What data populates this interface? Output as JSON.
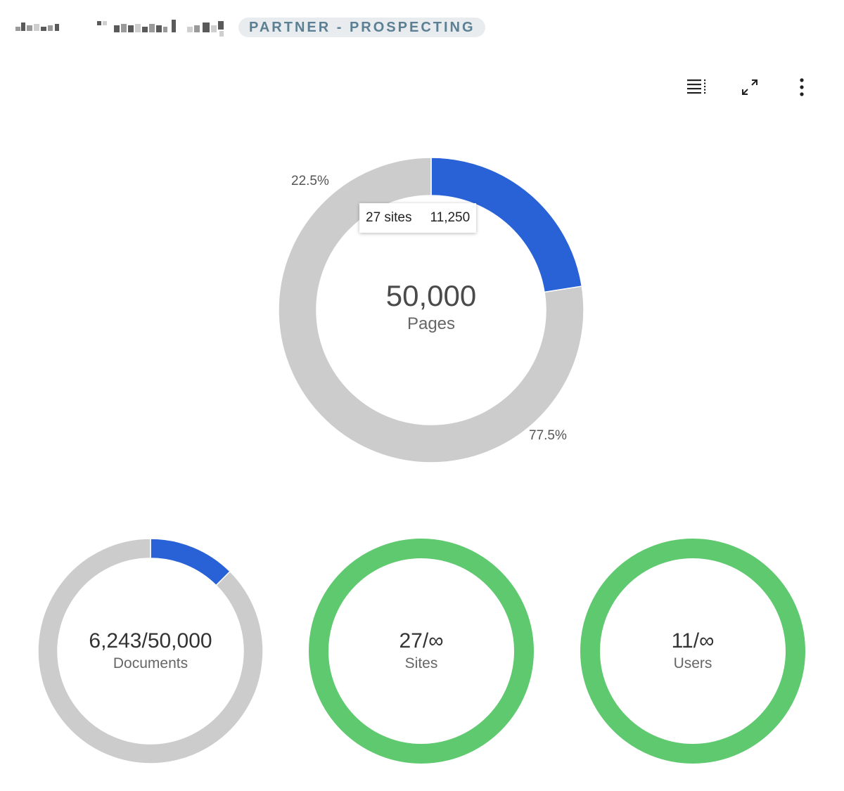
{
  "header": {
    "org_name": "Mike Paulson's",
    "plan_badge": "PARTNER - PROSPECTING"
  },
  "toolbar": {
    "buttons": [
      {
        "icon": "legend-list-icon"
      },
      {
        "icon": "expand-icon"
      },
      {
        "icon": "more-vertical-icon"
      }
    ]
  },
  "main_chart": {
    "center_value": "50,000",
    "center_label": "Pages",
    "used_percent_label": "22.5%",
    "free_percent_label": "77.5%",
    "tooltip": {
      "label": "27 sites",
      "value": "11,250"
    }
  },
  "stats": [
    {
      "value": "6,243/50,000",
      "label": "Documents"
    },
    {
      "value": "27/∞",
      "label": "Sites"
    },
    {
      "value": "11/∞",
      "label": "Users"
    }
  ],
  "colors": {
    "used": "#2962d6",
    "remaining": "#cccccc",
    "unlimited": "#5ec96e",
    "badge_text": "#5b7f93",
    "badge_bg": "#e9ecee"
  },
  "chart_data": [
    {
      "type": "pie",
      "center_text": "50,000",
      "center_subtext": "Pages",
      "slices": [
        {
          "label": "27 sites",
          "value": 11250,
          "percent": 22.5
        },
        {
          "value": 38750,
          "percent": 77.5
        }
      ]
    },
    {
      "type": "pie",
      "center_text": "6,243/50,000",
      "center_subtext": "Documents",
      "slices": [
        {
          "value": 6243
        },
        {
          "value": 43757
        }
      ]
    },
    {
      "type": "pie",
      "center_text": "27/∞",
      "center_subtext": "Sites",
      "slices": [
        {
          "value": 27
        }
      ]
    },
    {
      "type": "pie",
      "center_text": "11/∞",
      "center_subtext": "Users",
      "slices": [
        {
          "value": 11
        }
      ]
    }
  ]
}
